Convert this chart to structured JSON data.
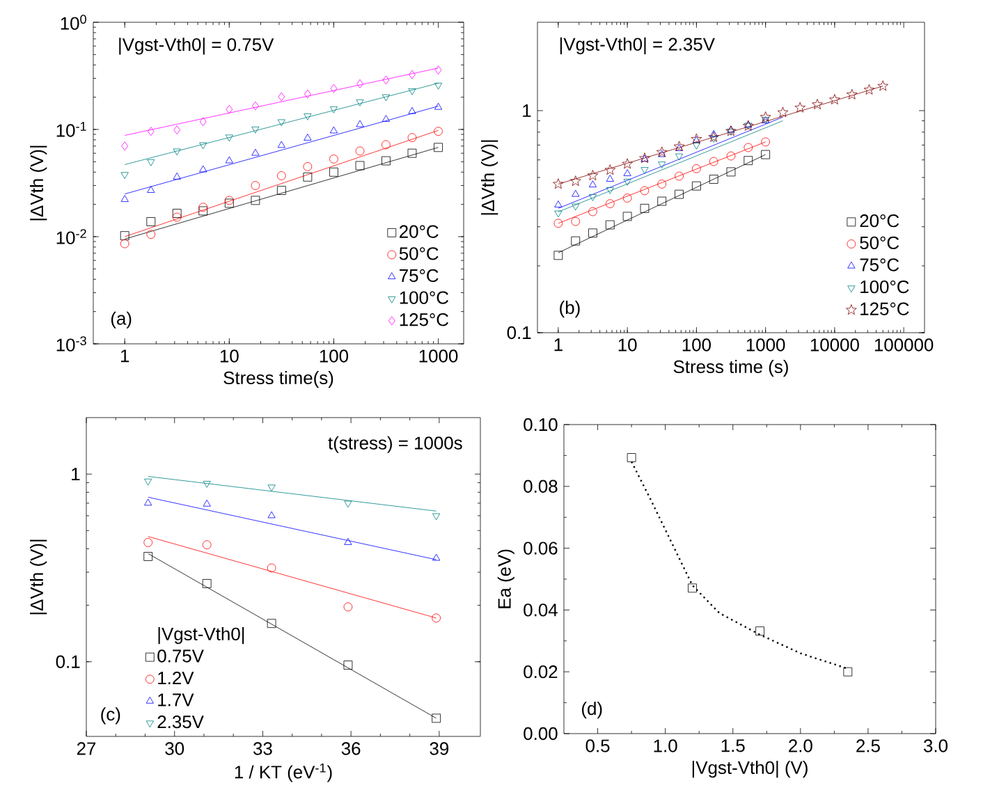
{
  "chart_data": [
    {
      "type": "scatter",
      "xlabel": "Stress time(s)",
      "ylabel": "|ΔVth (V)|",
      "log": "xy",
      "legend": "bottom right",
      "grid": false,
      "xlim": [
        0.5,
        1750
      ],
      "ylim": [
        0.001,
        1
      ],
      "xticks": [
        1,
        10,
        100,
        1000
      ],
      "yticks": [
        {
          "value": 0.001,
          "label": "10$^{-3}$"
        },
        {
          "value": 0.01,
          "label": "10$^{-2}$"
        },
        {
          "value": 0.1,
          "label": "10$^{-1}$"
        },
        {
          "value": 1,
          "label": "10$^{0}$"
        }
      ],
      "annotations": [
        "|Vgst-Vth0| = 0.75V",
        "(a)"
      ],
      "x": [
        1,
        1.78,
        3.16,
        5.62,
        10,
        17.8,
        31.6,
        56.2,
        100,
        178,
        316,
        562,
        1000
      ],
      "series": [
        {
          "name": "20°C",
          "color": "#000000",
          "marker": "square",
          "values": [
            0.0102,
            0.0138,
            0.0165,
            0.0174,
            0.0205,
            0.0218,
            0.027,
            0.036,
            0.04,
            0.046,
            0.051,
            0.06,
            0.068
          ]
        },
        {
          "name": "50°C",
          "color": "#ff0000",
          "marker": "circle",
          "values": [
            0.0086,
            0.0105,
            0.0152,
            0.0188,
            0.0218,
            0.03,
            0.037,
            0.045,
            0.053,
            0.063,
            0.072,
            0.084,
            0.096
          ]
        },
        {
          "name": "75°C",
          "color": "#0000ff",
          "marker": "triangle",
          "values": [
            0.0222,
            0.027,
            0.036,
            0.042,
            0.051,
            0.06,
            0.071,
            0.083,
            0.097,
            0.111,
            0.124,
            0.147,
            0.161
          ]
        },
        {
          "name": "100°C",
          "color": "#008080",
          "marker": "triangle-down",
          "values": [
            0.038,
            0.05,
            0.063,
            0.072,
            0.085,
            0.101,
            0.118,
            0.134,
            0.156,
            0.181,
            0.202,
            0.23,
            0.259
          ]
        },
        {
          "name": "125°C",
          "color": "#ff00ff",
          "marker": "diamond",
          "values": [
            0.07,
            0.096,
            0.099,
            0.118,
            0.154,
            0.166,
            0.202,
            0.214,
            0.241,
            0.267,
            0.289,
            0.325,
            0.359
          ]
        },
        {
          "type": "line",
          "color": "#000000",
          "line_style": "solid",
          "x": [
            1,
            1000
          ],
          "values": [
            0.0095,
            0.068
          ]
        },
        {
          "type": "line",
          "color": "#ff0000",
          "line_style": "solid",
          "x": [
            1,
            1000
          ],
          "values": [
            0.01,
            0.098
          ]
        },
        {
          "type": "line",
          "color": "#0000ff",
          "line_style": "solid",
          "x": [
            1,
            1000
          ],
          "values": [
            0.025,
            0.165
          ]
        },
        {
          "type": "line",
          "color": "#008080",
          "line_style": "solid",
          "x": [
            1,
            1000
          ],
          "values": [
            0.047,
            0.27
          ]
        },
        {
          "type": "line",
          "color": "#ff00ff",
          "line_style": "solid",
          "x": [
            1,
            1000
          ],
          "values": [
            0.088,
            0.374
          ]
        }
      ]
    },
    {
      "type": "scatter",
      "xlabel": "Stress time (s)",
      "ylabel": "|ΔVth (V)|",
      "log": "xy",
      "legend": "bottom right",
      "grid": false,
      "xlim": [
        0.5,
        200000
      ],
      "ylim": [
        0.1,
        2.5
      ],
      "xticks": [
        1,
        10,
        100,
        1000,
        10000,
        100000
      ],
      "yticks": [
        0.1,
        1
      ],
      "annotations": [
        "|Vgst-Vth0| = 2.35V",
        "(b)"
      ],
      "x": [
        1,
        1.78,
        3.16,
        5.62,
        10,
        17.8,
        31.6,
        56.2,
        100,
        178,
        316,
        562,
        1000
      ],
      "series": [
        {
          "name": "20°C",
          "color": "#000000",
          "marker": "square",
          "values": [
            0.223,
            0.259,
            0.281,
            0.306,
            0.334,
            0.363,
            0.391,
            0.42,
            0.458,
            0.491,
            0.53,
            0.596,
            0.634
          ]
        },
        {
          "name": "50°C",
          "color": "#ff0000",
          "marker": "circle",
          "values": [
            0.311,
            0.317,
            0.351,
            0.381,
            0.404,
            0.436,
            0.467,
            0.507,
            0.548,
            0.59,
            0.625,
            0.682,
            0.723
          ]
        },
        {
          "name": "75°C",
          "color": "#0000ff",
          "marker": "triangle",
          "values": [
            0.376,
            0.42,
            0.463,
            0.491,
            0.52,
            0.604,
            0.634,
            0.675,
            0.733,
            0.781,
            0.816,
            0.86,
            0.9
          ]
        },
        {
          "name": "100°C",
          "color": "#008080",
          "marker": "triangle-down",
          "values": [
            0.346,
            0.372,
            0.41,
            0.441,
            0.481,
            0.543,
            0.575,
            0.625,
            0.7,
            0.751,
            0.808,
            0.86,
            0.912
          ]
        },
        {
          "name": "125°C",
          "color": "#800000",
          "marker": "star",
          "x": [
            1,
            1.78,
            3.16,
            5.62,
            10,
            17.8,
            31.6,
            56.2,
            100,
            178,
            316,
            562,
            1000,
            1780,
            3160,
            5620,
            10000,
            17800,
            31600,
            50000
          ],
          "values": [
            0.467,
            0.481,
            0.51,
            0.54,
            0.575,
            0.61,
            0.65,
            0.689,
            0.744,
            0.759,
            0.808,
            0.853,
            0.935,
            0.981,
            1.03,
            1.065,
            1.12,
            1.18,
            1.24,
            1.29
          ]
        },
        {
          "type": "line",
          "color": "#000000",
          "line_style": "solid",
          "x": [
            1,
            1000
          ],
          "values": [
            0.229,
            0.634
          ]
        },
        {
          "type": "line",
          "color": "#ff0000",
          "line_style": "solid",
          "x": [
            1,
            1000
          ],
          "values": [
            0.311,
            0.723
          ]
        },
        {
          "type": "line",
          "color": "#0000ff",
          "line_style": "solid",
          "x": [
            1,
            1780
          ],
          "values": [
            0.363,
            0.935
          ]
        },
        {
          "type": "line",
          "color": "#008080",
          "line_style": "solid",
          "x": [
            1,
            1780
          ],
          "values": [
            0.35,
            0.9
          ]
        },
        {
          "type": "line",
          "color": "#800000",
          "line_style": "solid",
          "x": [
            1,
            50000
          ],
          "values": [
            0.467,
            1.29
          ]
        }
      ]
    },
    {
      "type": "scatter",
      "xlabel": "1 / KT (eV$^{-1}$)",
      "ylabel": "|ΔVth (V)|",
      "log": "y",
      "legend": "bottom left",
      "legend_title": "|Vgst-Vth0|",
      "grid": false,
      "xlim": [
        27,
        40.4
      ],
      "ylim": [
        0.04,
        2
      ],
      "xticks": [
        27,
        30,
        33,
        36,
        39
      ],
      "yticks": [
        0.1,
        1
      ],
      "annotations": [
        "t(stress) = 1000s",
        "(c)"
      ],
      "x": [
        29.1,
        31.1,
        33.3,
        35.9,
        38.9
      ],
      "series": [
        {
          "name": "0.75V",
          "color": "#000000",
          "marker": "square",
          "values": [
            0.364,
            0.261,
            0.16,
            0.096,
            0.05
          ]
        },
        {
          "name": "1.2V",
          "color": "#ff0000",
          "marker": "circle",
          "values": [
            0.432,
            0.42,
            0.316,
            0.196,
            0.171
          ]
        },
        {
          "name": "1.7V",
          "color": "#0000ff",
          "marker": "triangle",
          "values": [
            0.7,
            0.692,
            0.6,
            0.432,
            0.356
          ]
        },
        {
          "name": "2.35V",
          "color": "#008080",
          "marker": "triangle-down",
          "values": [
            0.918,
            0.893,
            0.853,
            0.7,
            0.6
          ]
        },
        {
          "type": "line",
          "color": "#000000",
          "line_style": "solid",
          "x": [
            29.1,
            38.9
          ],
          "values": [
            0.377,
            0.05
          ]
        },
        {
          "type": "line",
          "color": "#ff0000",
          "line_style": "solid",
          "x": [
            29.1,
            38.9
          ],
          "values": [
            0.465,
            0.171
          ]
        },
        {
          "type": "line",
          "color": "#0000ff",
          "line_style": "solid",
          "x": [
            29.1,
            38.9
          ],
          "values": [
            0.753,
            0.35
          ]
        },
        {
          "type": "line",
          "color": "#008080",
          "line_style": "solid",
          "x": [
            29.1,
            38.9
          ],
          "values": [
            0.972,
            0.635
          ]
        }
      ]
    },
    {
      "type": "scatter",
      "xlabel": "|Vgst-Vth0| (V)",
      "ylabel": "Ea (eV)",
      "grid": false,
      "xlim": [
        0.25,
        3.0
      ],
      "ylim": [
        0,
        0.1
      ],
      "xticks": [
        0.5,
        {
          "value": 1,
          "label": "1.0"
        },
        1.5,
        {
          "value": 2,
          "label": "2.0"
        },
        2.5,
        {
          "value": 3,
          "label": "3.0"
        }
      ],
      "yticks": [
        {
          "value": 0,
          "label": "0.00"
        },
        0.02,
        0.04,
        0.06,
        0.08,
        {
          "value": 0.1,
          "label": "0.10"
        }
      ],
      "annotations": [
        "(d)"
      ],
      "x": [
        0.75,
        1.2,
        1.7,
        2.35
      ],
      "series": [
        {
          "color": "#000000",
          "marker": "square",
          "values": [
            0.0893,
            0.0471,
            0.0332,
            0.02
          ]
        },
        {
          "type": "line",
          "color": "#000000",
          "line_style": "dotted",
          "x": [
            0.75,
            0.9,
            1.0,
            1.2,
            1.4,
            1.7,
            2.0,
            2.35
          ],
          "values": [
            0.088,
            0.075,
            0.066,
            0.048,
            0.039,
            0.032,
            0.026,
            0.021
          ]
        }
      ]
    }
  ]
}
